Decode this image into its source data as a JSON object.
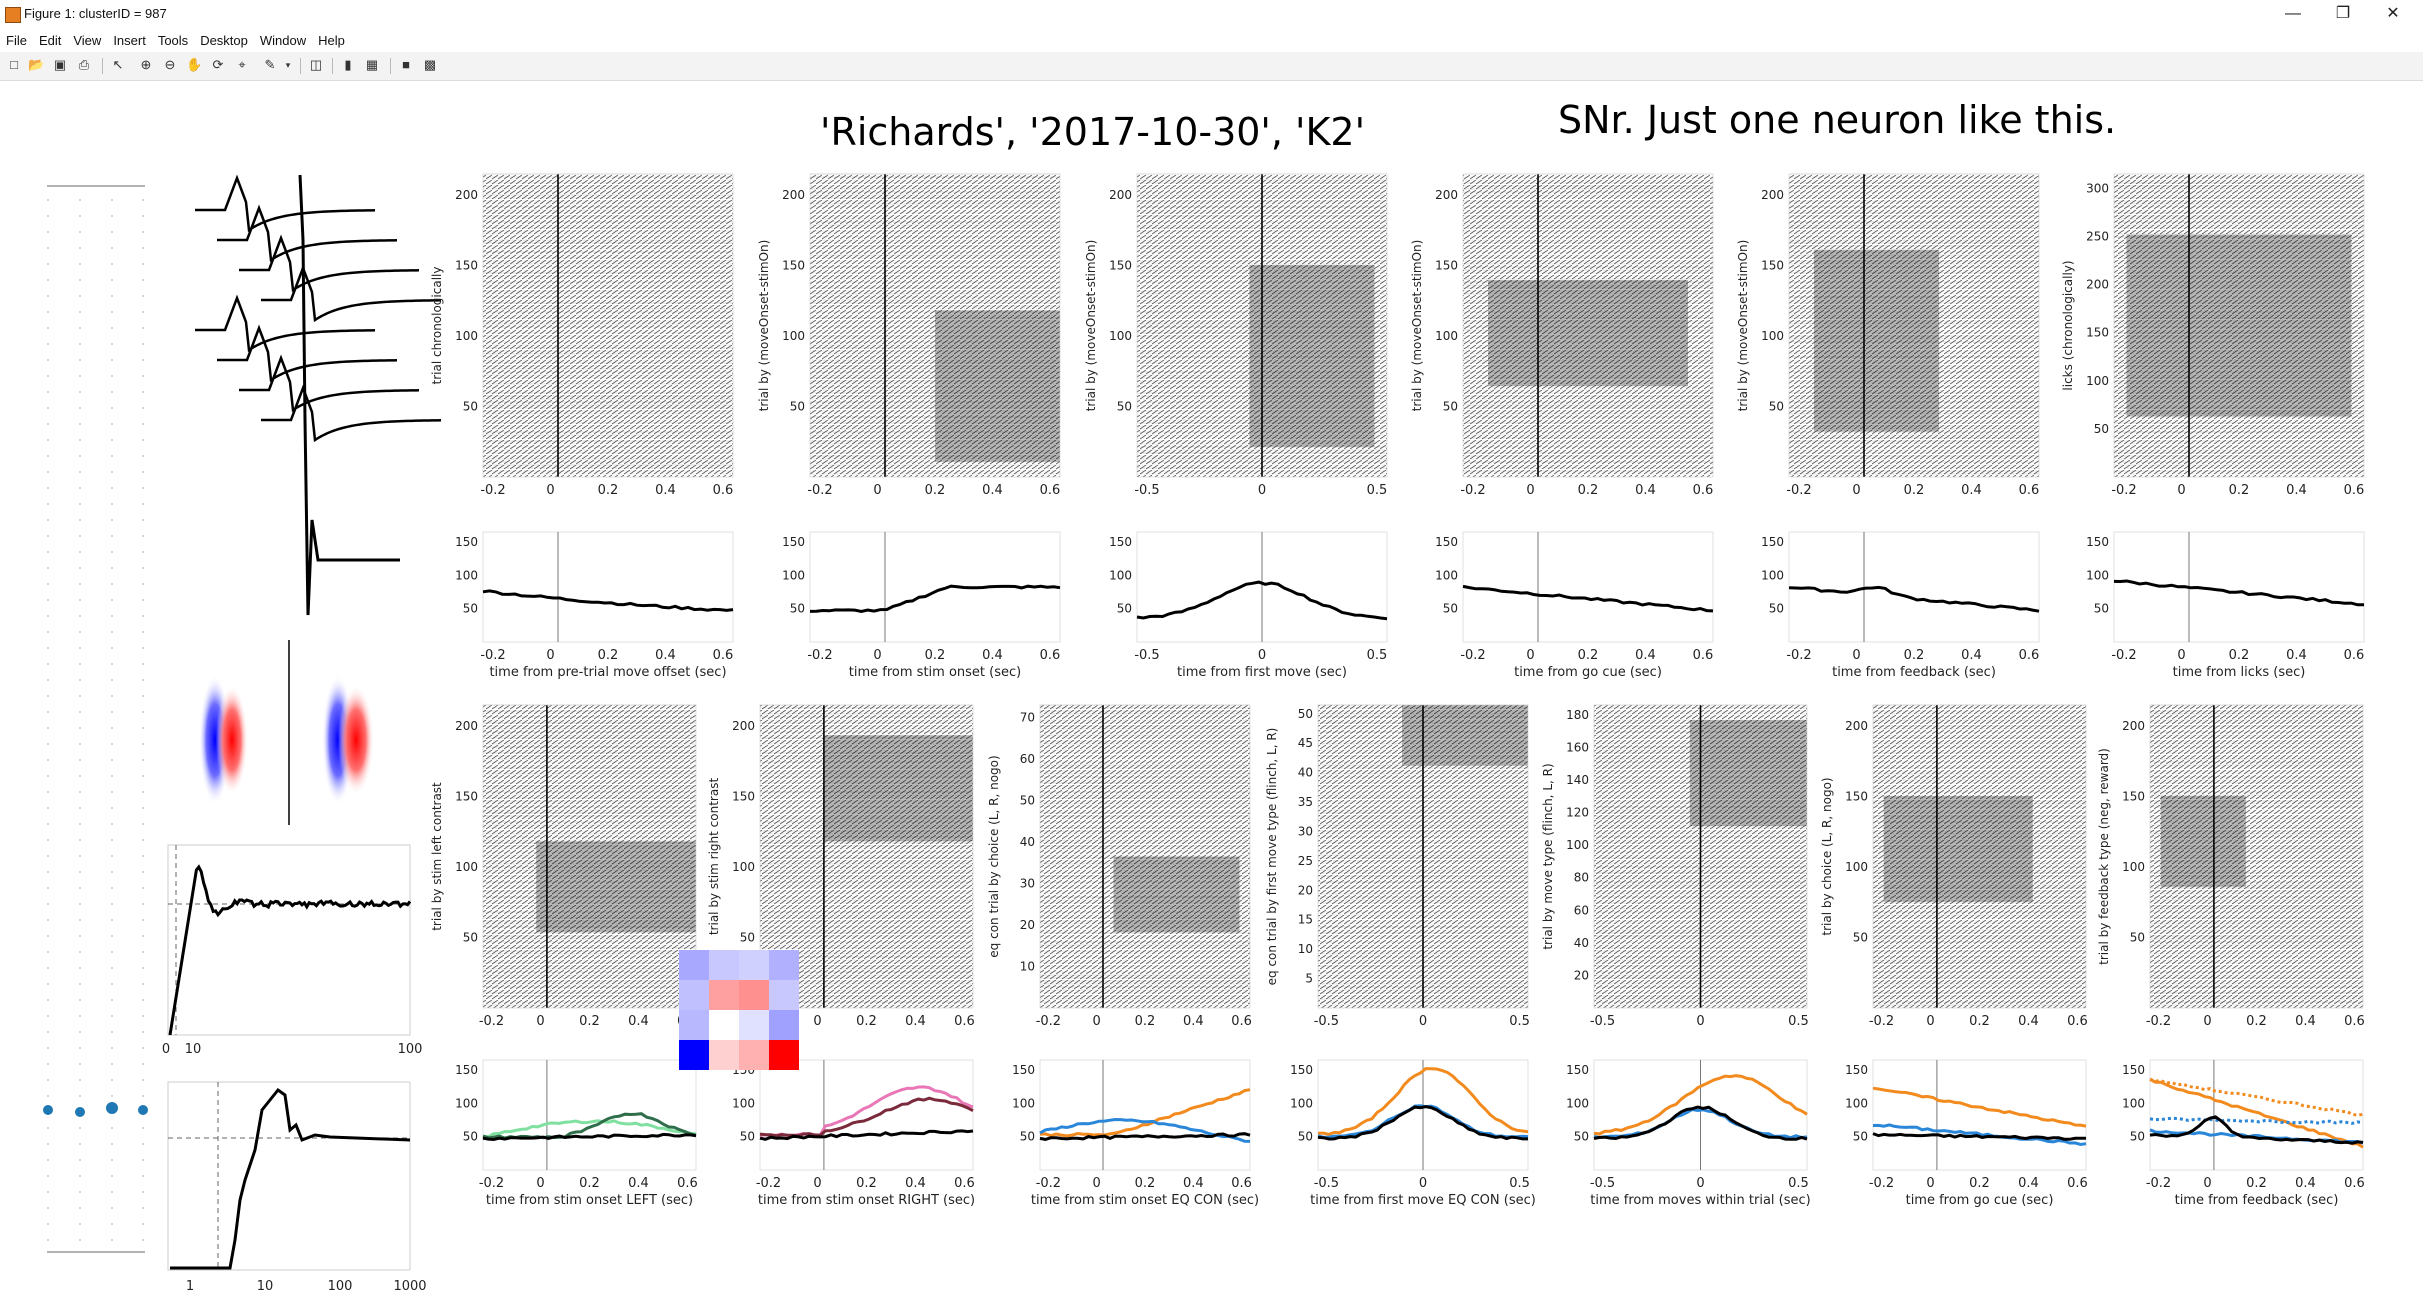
{
  "window": {
    "title": "Figure 1: clusterID = 987",
    "minimize_icon": "minimize-icon",
    "maximize_icon": "maximize-icon",
    "close_icon": "close-icon"
  },
  "menu": [
    "File",
    "Edit",
    "View",
    "Insert",
    "Tools",
    "Desktop",
    "Window",
    "Help"
  ],
  "toolbar_icons": [
    "new-figure-icon",
    "open-file-icon",
    "save-icon",
    "print-icon",
    "select-pointer-icon",
    "zoom-in-icon",
    "zoom-out-icon",
    "pan-icon",
    "rotate-3d-icon",
    "data-cursor-icon",
    "brush-icon",
    "link-plot-icon",
    "insert-colorbar-icon",
    "insert-legend-icon",
    "hide-plot-tools-icon",
    "show-plot-tools-icon"
  ],
  "figure": {
    "suptitle_left": "'Richards', '2017-10-30', 'K2'",
    "suptitle_right": "SNr. Just one neuron like this.",
    "raster_row1": [
      {
        "ylabel": "trial chronologically",
        "yticks": [
          "50",
          "100",
          "150",
          "200"
        ],
        "xticks": [
          "-0.2",
          "0",
          "0.2",
          "0.4",
          "0.6"
        ]
      },
      {
        "ylabel": "trial by (moveOnset-stimOn)",
        "yticks": [
          "50",
          "100",
          "150",
          "200"
        ],
        "xticks": [
          "-0.2",
          "0",
          "0.2",
          "0.4",
          "0.6"
        ]
      },
      {
        "ylabel": "trial by (moveOnset-stimOn)",
        "yticks": [
          "50",
          "100",
          "150",
          "200"
        ],
        "xticks": [
          "-0.5",
          "0",
          "0.5"
        ]
      },
      {
        "ylabel": "trial by (moveOnset-stimOn)",
        "yticks": [
          "50",
          "100",
          "150",
          "200"
        ],
        "xticks": [
          "-0.2",
          "0",
          "0.2",
          "0.4",
          "0.6"
        ]
      },
      {
        "ylabel": "trial by (moveOnset-stimOn)",
        "yticks": [
          "50",
          "100",
          "150",
          "200"
        ],
        "xticks": [
          "-0.2",
          "0",
          "0.2",
          "0.4",
          "0.6"
        ]
      },
      {
        "ylabel": "licks (chronologically)",
        "yticks": [
          "50",
          "100",
          "150",
          "200",
          "250",
          "300"
        ],
        "xticks": [
          "-0.2",
          "0",
          "0.2",
          "0.4",
          "0.6"
        ]
      }
    ],
    "psth_row1": [
      {
        "xlabel": "time from pre-trial move offset (sec)",
        "yticks": [
          "50",
          "100",
          "150"
        ],
        "xticks": [
          "-0.2",
          "0",
          "0.2",
          "0.4",
          "0.6"
        ]
      },
      {
        "xlabel": "time from stim onset (sec)",
        "yticks": [
          "50",
          "100",
          "150"
        ],
        "xticks": [
          "-0.2",
          "0",
          "0.2",
          "0.4",
          "0.6"
        ]
      },
      {
        "xlabel": "time from first move (sec)",
        "yticks": [
          "50",
          "100",
          "150"
        ],
        "xticks": [
          "-0.5",
          "0",
          "0.5"
        ]
      },
      {
        "xlabel": "time from go cue (sec)",
        "yticks": [
          "50",
          "100",
          "150"
        ],
        "xticks": [
          "-0.2",
          "0",
          "0.2",
          "0.4",
          "0.6"
        ]
      },
      {
        "xlabel": "time from feedback (sec)",
        "yticks": [
          "50",
          "100",
          "150"
        ],
        "xticks": [
          "-0.2",
          "0",
          "0.2",
          "0.4",
          "0.6"
        ]
      },
      {
        "xlabel": "time from licks (sec)",
        "yticks": [
          "50",
          "100",
          "150"
        ],
        "xticks": [
          "-0.2",
          "0",
          "0.2",
          "0.4",
          "0.6"
        ]
      }
    ],
    "raster_row2": [
      {
        "ylabel": "trial by stim left contrast",
        "yticks": [
          "50",
          "100",
          "150",
          "200"
        ],
        "xticks": [
          "-0.2",
          "0",
          "0.2",
          "0.4",
          "0.6"
        ]
      },
      {
        "ylabel": "trial by stim right contrast",
        "yticks": [
          "50",
          "100",
          "150",
          "200"
        ],
        "xticks": [
          "-0.2",
          "0",
          "0.2",
          "0.4",
          "0.6"
        ]
      },
      {
        "ylabel": "eq con trial by choice (L, R, nogo)",
        "yticks": [
          "10",
          "20",
          "30",
          "40",
          "50",
          "60",
          "70"
        ],
        "xticks": [
          "-0.2",
          "0",
          "0.2",
          "0.4",
          "0.6"
        ]
      },
      {
        "ylabel": "eq con trial by first move type (flinch, L, R)",
        "yticks": [
          "5",
          "10",
          "15",
          "20",
          "25",
          "30",
          "35",
          "40",
          "45",
          "50"
        ],
        "xticks": [
          "-0.5",
          "0",
          "0.5"
        ]
      },
      {
        "ylabel": "trial by move type (flinch, L, R)",
        "yticks": [
          "20",
          "40",
          "60",
          "80",
          "100",
          "120",
          "140",
          "160",
          "180"
        ],
        "xticks": [
          "-0.5",
          "0",
          "0.5"
        ]
      },
      {
        "ylabel": "trial by choice (L, R, nogo)",
        "yticks": [
          "50",
          "100",
          "150",
          "200"
        ],
        "xticks": [
          "-0.2",
          "0",
          "0.2",
          "0.4",
          "0.6"
        ]
      },
      {
        "ylabel": "trial by feedback type (neg, reward)",
        "yticks": [
          "50",
          "100",
          "150",
          "200"
        ],
        "xticks": [
          "-0.2",
          "0",
          "0.2",
          "0.4",
          "0.6"
        ]
      }
    ],
    "psth_row2": [
      {
        "xlabel": "time from stim onset LEFT (sec)",
        "yticks": [
          "50",
          "100",
          "150"
        ],
        "xticks": [
          "-0.2",
          "0",
          "0.2",
          "0.4",
          "0.6"
        ]
      },
      {
        "xlabel": "time from stim onset RIGHT (sec)",
        "yticks": [
          "50",
          "100",
          "150"
        ],
        "xticks": [
          "-0.2",
          "0",
          "0.2",
          "0.4",
          "0.6"
        ]
      },
      {
        "xlabel": "time from stim onset EQ CON (sec)",
        "yticks": [
          "50",
          "100",
          "150"
        ],
        "xticks": [
          "-0.2",
          "0",
          "0.2",
          "0.4",
          "0.6"
        ]
      },
      {
        "xlabel": "time from first move EQ CON (sec)",
        "yticks": [
          "50",
          "100",
          "150"
        ],
        "xticks": [
          "-0.5",
          "0",
          "0.5"
        ]
      },
      {
        "xlabel": "time from moves within trial (sec)",
        "yticks": [
          "50",
          "100",
          "150"
        ],
        "xticks": [
          "-0.5",
          "0",
          "0.5"
        ]
      },
      {
        "xlabel": "time from go cue (sec)",
        "yticks": [
          "50",
          "100",
          "150"
        ],
        "xticks": [
          "-0.2",
          "0",
          "0.2",
          "0.4",
          "0.6"
        ]
      },
      {
        "xlabel": "time from feedback (sec)",
        "yticks": [
          "50",
          "100",
          "150"
        ],
        "xticks": [
          "-0.2",
          "0",
          "0.2",
          "0.4",
          "0.6"
        ]
      }
    ],
    "acg_linear_xticks": [
      "0",
      "10",
      "100"
    ],
    "acg_log_xticks": [
      "1",
      "10",
      "100",
      "1000"
    ],
    "colors": {
      "black": "#000000",
      "orange": "#f28a1e",
      "blue": "#2a86d8",
      "green_light": "#7fe0a0",
      "green_dark": "#2f6e4a",
      "pink": "#e977b8",
      "maroon": "#7a2a3a",
      "waveform_blue": "#0000ff",
      "waveform_red": "#ff0000",
      "probe_dot": "#1f77b4"
    }
  }
}
